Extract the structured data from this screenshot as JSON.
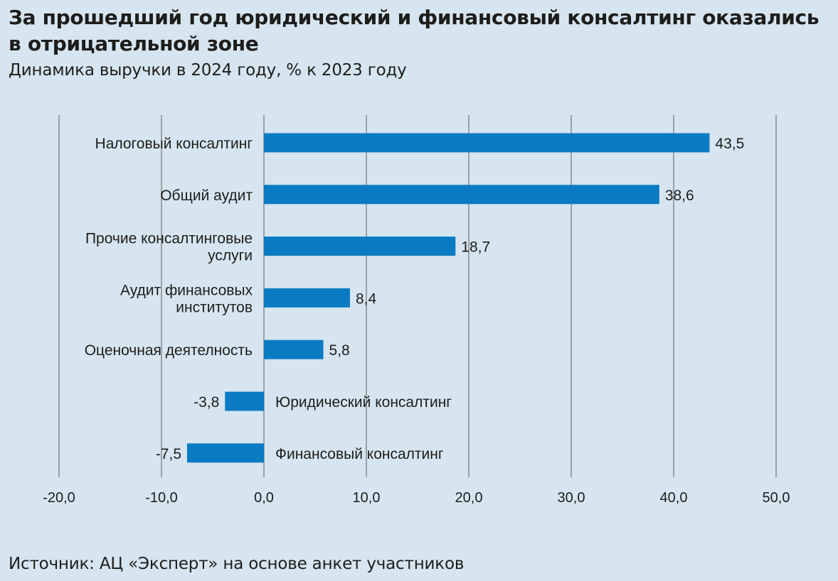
{
  "header": {
    "title": "За прошедший год юридический и финансовый консалтинг оказались в отрицательной зоне",
    "subtitle": "Динамика выручки в 2024 году, % к 2023 году"
  },
  "footer": {
    "source": "Источник: АЦ «Эксперт» на основе анкет участников"
  },
  "colors": {
    "background": "#d6e5f0",
    "bar": "#0a7bc2",
    "grid": "#6b6b6b",
    "text": "#1d1d1b"
  },
  "chart_data": {
    "type": "bar",
    "orientation": "horizontal",
    "categories": [
      [
        "Налоговый консалтинг"
      ],
      [
        "Общий аудит"
      ],
      [
        "Прочие консалтинговые",
        "услуги"
      ],
      [
        "Аудит финансовых",
        "институтов"
      ],
      [
        "Оценочная деятелность"
      ],
      [
        "Юридический консалтинг"
      ],
      [
        "Финансовый консалтинг"
      ]
    ],
    "values": [
      43.5,
      38.6,
      18.7,
      8.4,
      5.8,
      -3.8,
      -7.5
    ],
    "value_labels": [
      "43,5",
      "38,6",
      "18,7",
      "8,4",
      "5,8",
      "-3,8",
      "-7,5"
    ],
    "xlim": [
      -20,
      50
    ],
    "xticks": [
      -20,
      -10,
      0,
      10,
      20,
      30,
      40,
      50
    ],
    "xtick_labels": [
      "-20,0",
      "-10,0",
      "0,0",
      "10,0",
      "20,0",
      "30,0",
      "40,0",
      "50,0"
    ],
    "grid": "vertical",
    "legend": "none",
    "title": "За прошедший год юридический и финансовый консалтинг оказались в отрицательной зоне",
    "subtitle": "Динамика выручки в 2024 году, % к 2023 году"
  }
}
